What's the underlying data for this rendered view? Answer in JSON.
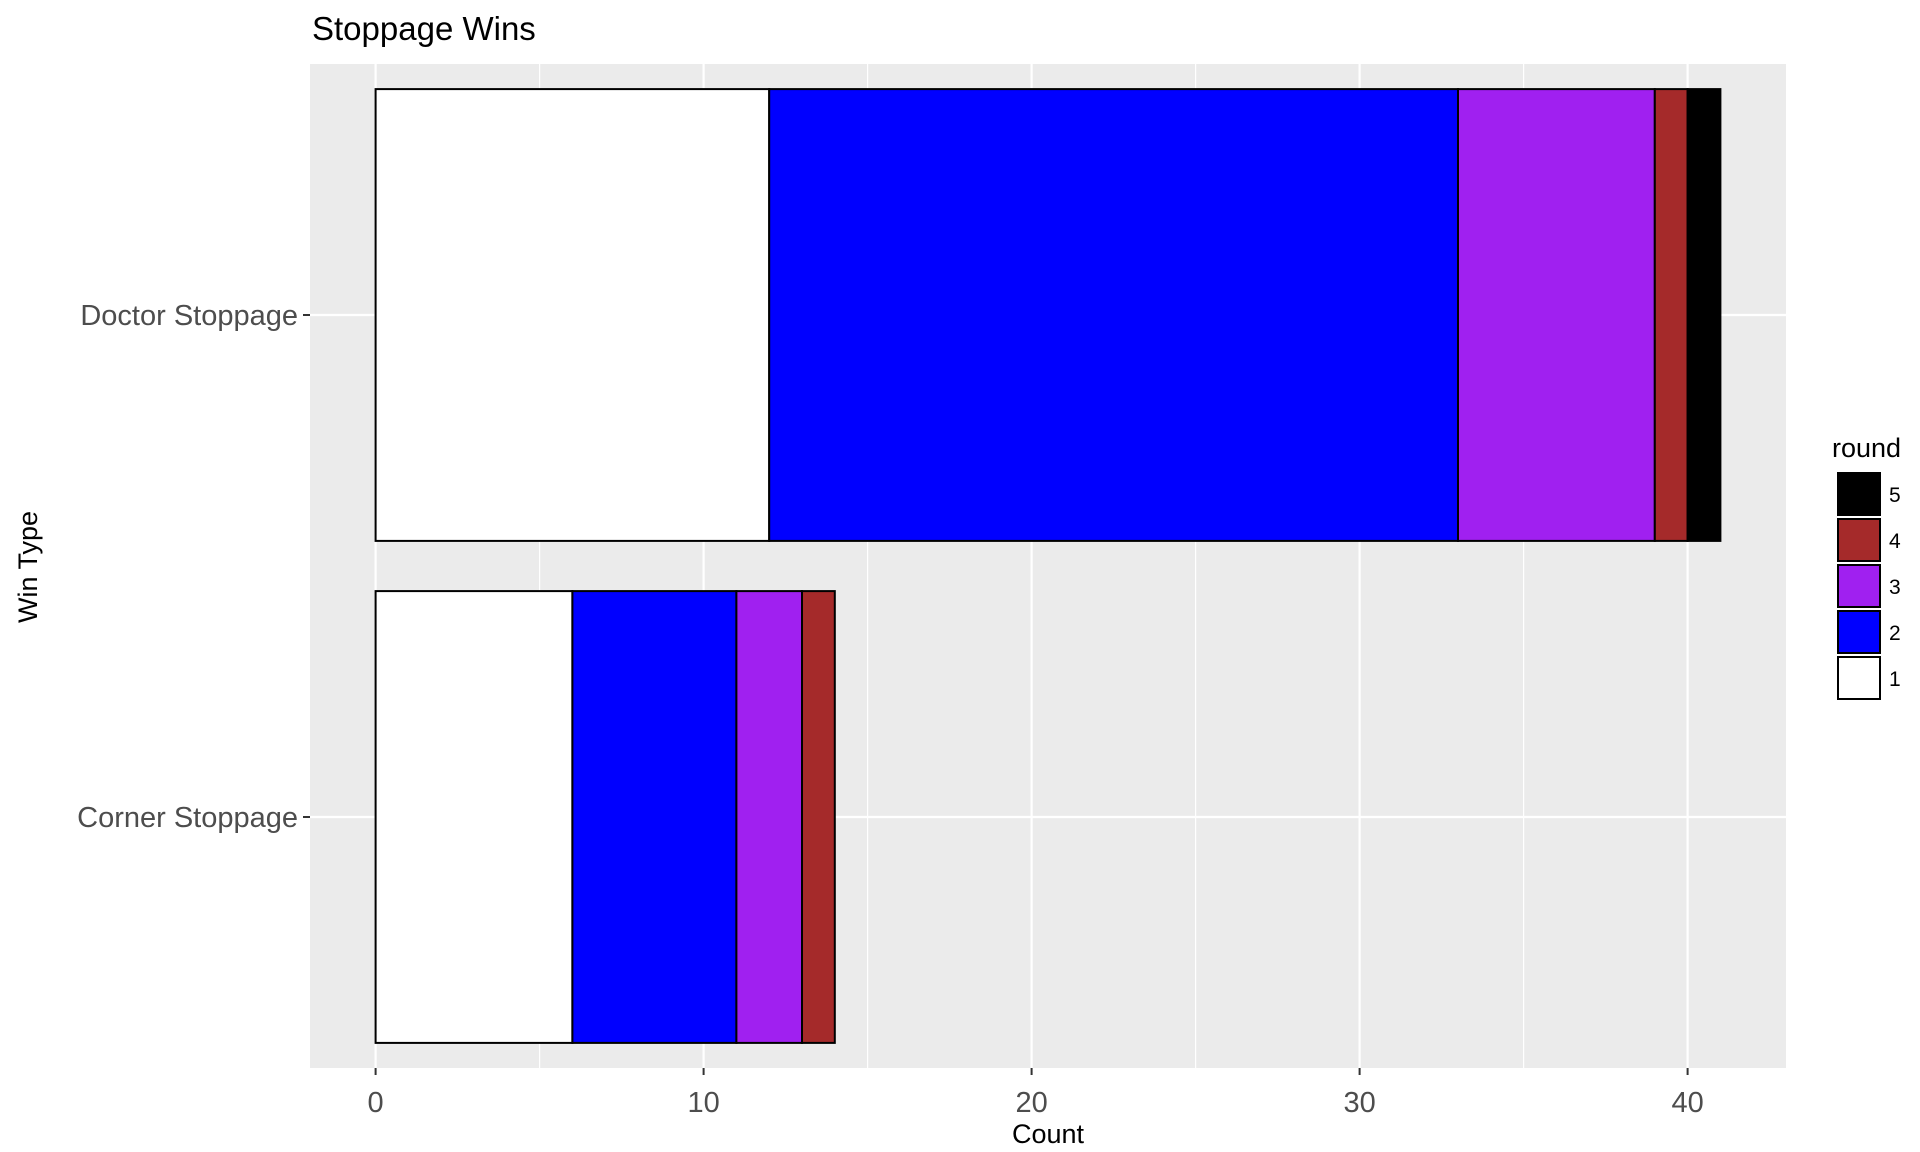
{
  "chart_data": {
    "type": "bar",
    "orientation": "horizontal",
    "stacked": true,
    "title": "Stoppage Wins",
    "xlabel": "Count",
    "ylabel": "Win Type",
    "categories": [
      "Doctor Stoppage",
      "Corner Stoppage"
    ],
    "xlim": [
      -2,
      43
    ],
    "xticks": [
      0,
      10,
      20,
      30,
      40
    ],
    "grid": true,
    "legend": {
      "title": "round",
      "position": "right"
    },
    "series": [
      {
        "name": "1",
        "color": "#ffffff",
        "values": [
          12,
          6
        ]
      },
      {
        "name": "2",
        "color": "#0000ff",
        "values": [
          21,
          5
        ]
      },
      {
        "name": "3",
        "color": "#a020f0",
        "values": [
          6,
          2
        ]
      },
      {
        "name": "4",
        "color": "#a52a2a",
        "values": [
          1,
          1
        ]
      },
      {
        "name": "5",
        "color": "#000000",
        "values": [
          1,
          0
        ]
      }
    ]
  }
}
